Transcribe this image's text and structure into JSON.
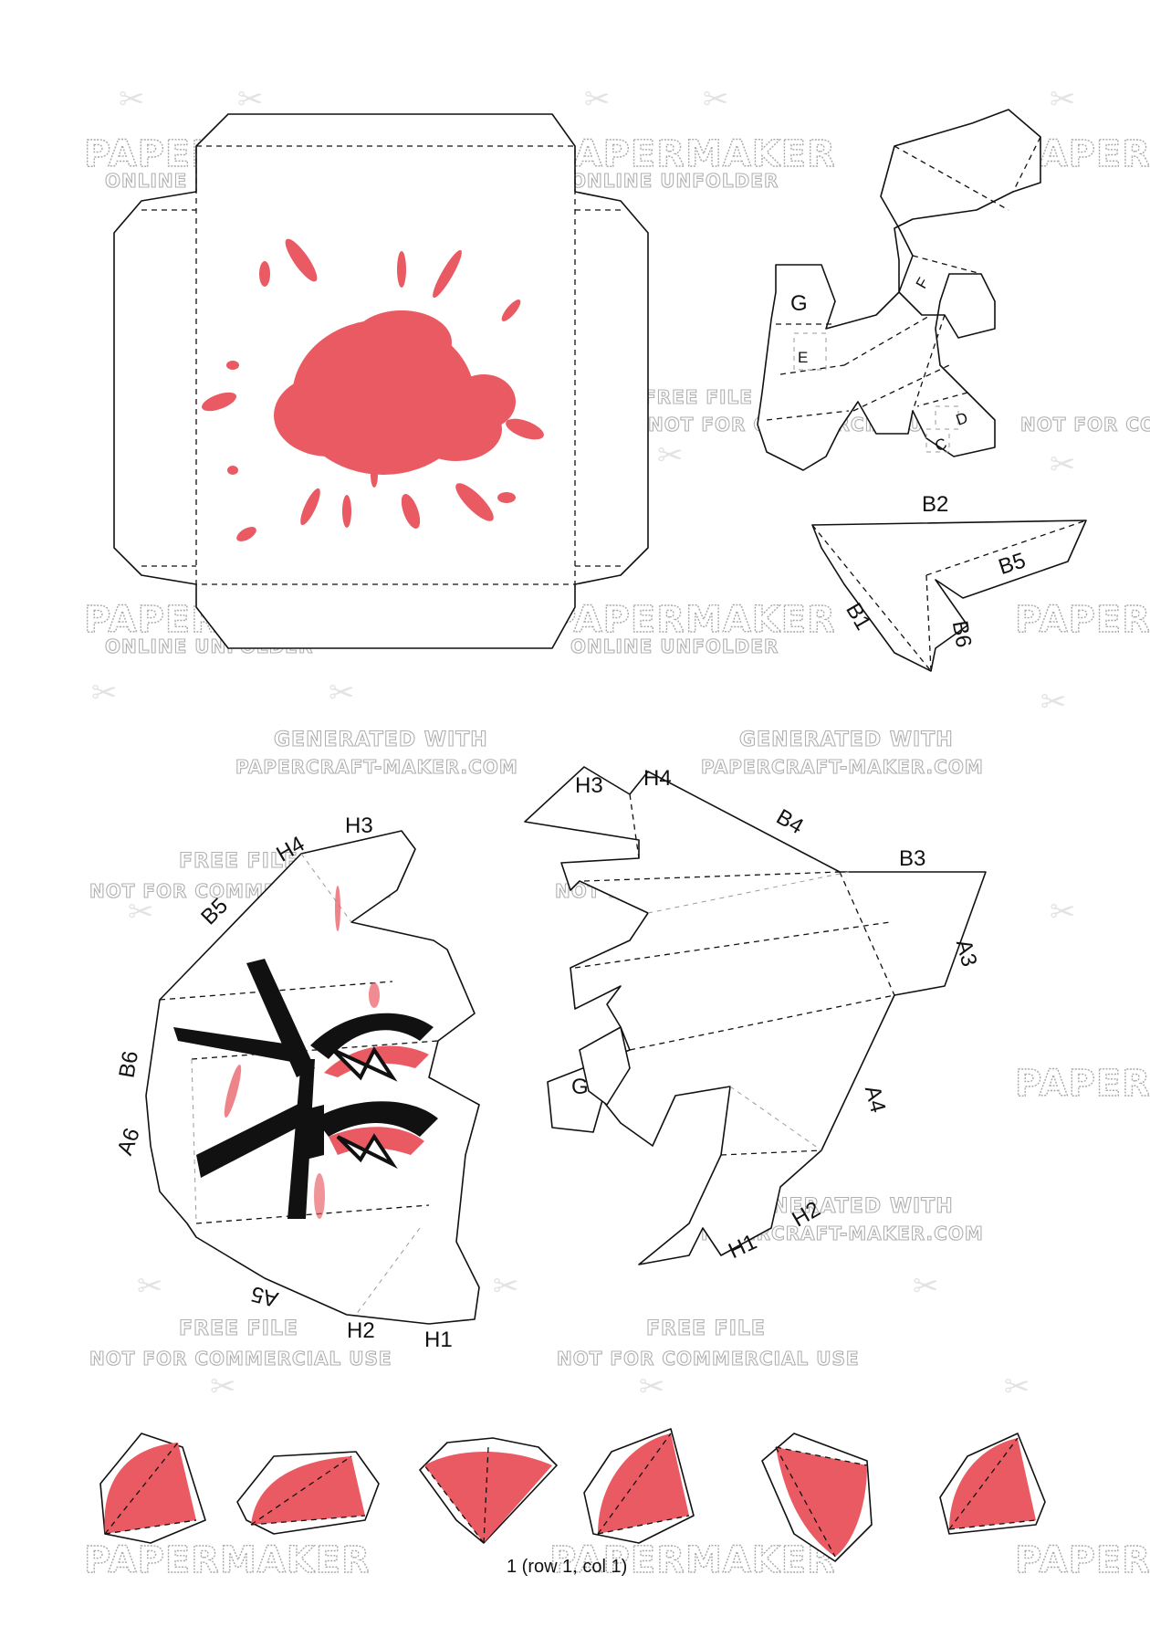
{
  "watermarks": {
    "brand": "PAPERMAKER",
    "online": "ONLINE UNFOLDER",
    "generated": "GENERATED WITH",
    "site": "PAPERCRAFT-MAKER.COM",
    "free": "FREE FILE",
    "not_commercial": "NOT FOR COMMERCIAL USE"
  },
  "labels": {
    "g": "G",
    "e": "E",
    "f": "F",
    "c": "C",
    "d": "D",
    "b1": "B1",
    "b2": "B2",
    "b3": "B3",
    "b4": "B4",
    "b5": "B5",
    "b6": "B6",
    "h1": "H1",
    "h2": "H2",
    "h3": "H3",
    "h4": "H4",
    "a3": "A3",
    "a4": "A4",
    "a5": "A5",
    "a6": "A6"
  },
  "icons": {
    "scissors": "✂"
  },
  "colors": {
    "red": "#e95a63",
    "line": "#111111",
    "watermark": "#a9a9a9"
  },
  "footer": {
    "page": "1 (row 1, col 1)"
  }
}
